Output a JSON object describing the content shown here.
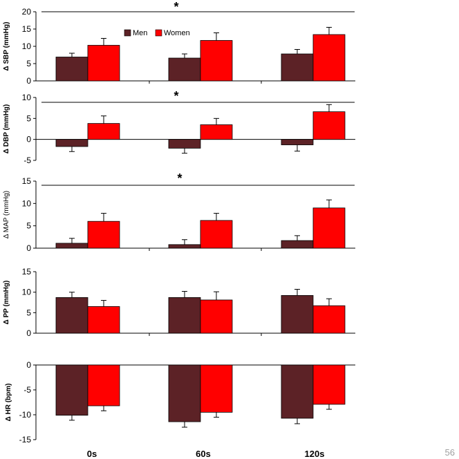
{
  "colors": {
    "men": "#5c2226",
    "women": "#ff0000",
    "axis": "#000000"
  },
  "page_number": "56",
  "chart_data": [
    {
      "type": "bar",
      "id": "sbp",
      "ylabel": "Δ SBP (mmHg)",
      "ylabel_bold": true,
      "categories": [
        "0s",
        "60s",
        "120s"
      ],
      "ylim": [
        0,
        20
      ],
      "yticks": [
        0,
        5,
        10,
        15,
        20
      ],
      "legend": {
        "entries": [
          "Men",
          "Women"
        ],
        "placement": "top-center"
      },
      "significance": "*",
      "series": [
        {
          "name": "Men",
          "values": [
            6.9,
            6.6,
            7.8
          ],
          "errors": [
            1.1,
            1.2,
            1.3
          ]
        },
        {
          "name": "Women",
          "values": [
            10.3,
            11.7,
            13.4
          ],
          "errors": [
            2.0,
            2.2,
            2.1
          ]
        }
      ]
    },
    {
      "type": "bar",
      "id": "dbp",
      "ylabel": "Δ DBP (mmHg)",
      "ylabel_bold": true,
      "categories": [
        "0s",
        "60s",
        "120s"
      ],
      "ylim": [
        -5,
        10
      ],
      "yticks": [
        -5,
        0,
        5,
        10
      ],
      "significance": "*",
      "series": [
        {
          "name": "Men",
          "values": [
            -1.7,
            -2.1,
            -1.3
          ],
          "errors": [
            1.2,
            1.2,
            1.5
          ]
        },
        {
          "name": "Women",
          "values": [
            3.8,
            3.5,
            6.6
          ],
          "errors": [
            1.8,
            1.5,
            1.7
          ]
        }
      ]
    },
    {
      "type": "bar",
      "id": "map",
      "ylabel": "Δ MAP (mmHg)",
      "ylabel_bold": false,
      "categories": [
        "0s",
        "60s",
        "120s"
      ],
      "ylim": [
        0,
        15
      ],
      "yticks": [
        0,
        5,
        10,
        15
      ],
      "significance": "*",
      "series": [
        {
          "name": "Men",
          "values": [
            1.1,
            0.8,
            1.7
          ],
          "errors": [
            1.1,
            1.1,
            1.1
          ]
        },
        {
          "name": "Women",
          "values": [
            6.0,
            6.2,
            9.0
          ],
          "errors": [
            1.8,
            1.6,
            1.8
          ]
        }
      ]
    },
    {
      "type": "bar",
      "id": "pp",
      "ylabel": "Δ PP (mmHg)",
      "ylabel_bold": true,
      "categories": [
        "0s",
        "60s",
        "120s"
      ],
      "ylim": [
        0,
        15
      ],
      "yticks": [
        0,
        5,
        10,
        15
      ],
      "series": [
        {
          "name": "Men",
          "values": [
            8.7,
            8.7,
            9.2
          ],
          "errors": [
            1.3,
            1.5,
            1.5
          ]
        },
        {
          "name": "Women",
          "values": [
            6.5,
            8.1,
            6.7
          ],
          "errors": [
            1.5,
            2.0,
            1.7
          ]
        }
      ]
    },
    {
      "type": "bar",
      "id": "hr",
      "ylabel": "Δ HR (bpm)",
      "ylabel_bold": true,
      "categories": [
        "0s",
        "60s",
        "120s"
      ],
      "show_category_labels": true,
      "ylim": [
        -15,
        0
      ],
      "yticks": [
        -15,
        -10,
        -5,
        0
      ],
      "series": [
        {
          "name": "Men",
          "values": [
            -10.1,
            -11.4,
            -10.7
          ],
          "errors": [
            1.0,
            1.1,
            1.1
          ]
        },
        {
          "name": "Women",
          "values": [
            -8.2,
            -9.5,
            -7.9
          ],
          "errors": [
            1.0,
            1.0,
            1.0
          ]
        }
      ]
    }
  ]
}
